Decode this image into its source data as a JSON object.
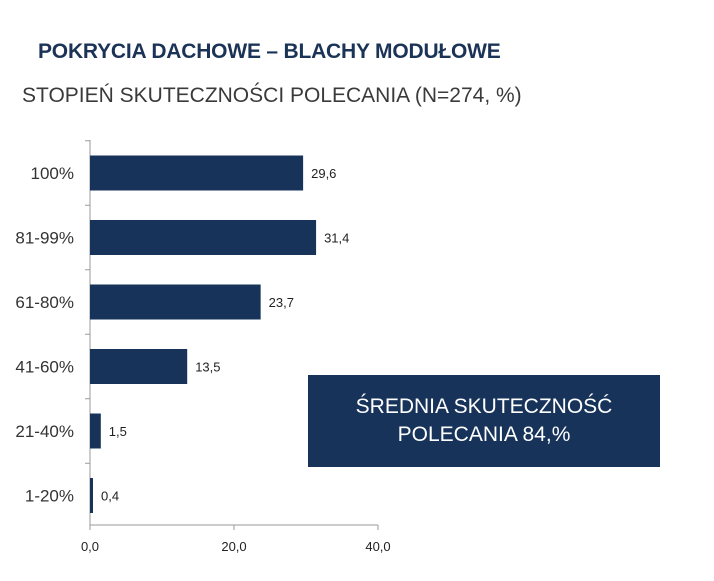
{
  "header": {
    "title": "POKRYCIA DACHOWE – BLACHY MODUŁOWE",
    "subtitle": "STOPIEŃ SKUTECZNOŚCI POLECANIA (N=274, %)"
  },
  "callout": {
    "line1": "ŚREDNIA SKUTECZNOŚĆ",
    "line2": "POLECANIA 84,%"
  },
  "colors": {
    "bar": "#17335a",
    "axis": "#9a9a9a",
    "title": "#1b3356"
  },
  "chart_data": {
    "type": "bar",
    "orientation": "horizontal",
    "categories": [
      "100%",
      "81-99%",
      "61-80%",
      "41-60%",
      "21-40%",
      "1-20%"
    ],
    "values": [
      29.6,
      31.4,
      23.7,
      13.5,
      1.5,
      0.4
    ],
    "value_labels": [
      "29,6",
      "31,4",
      "23,7",
      "13,5",
      "1,5",
      "0,4"
    ],
    "x_ticks": [
      0,
      20,
      40
    ],
    "x_tick_labels": [
      "0,0",
      "20,0",
      "40,0"
    ],
    "xlim": [
      0,
      40
    ],
    "grid": false,
    "legend": "none"
  }
}
